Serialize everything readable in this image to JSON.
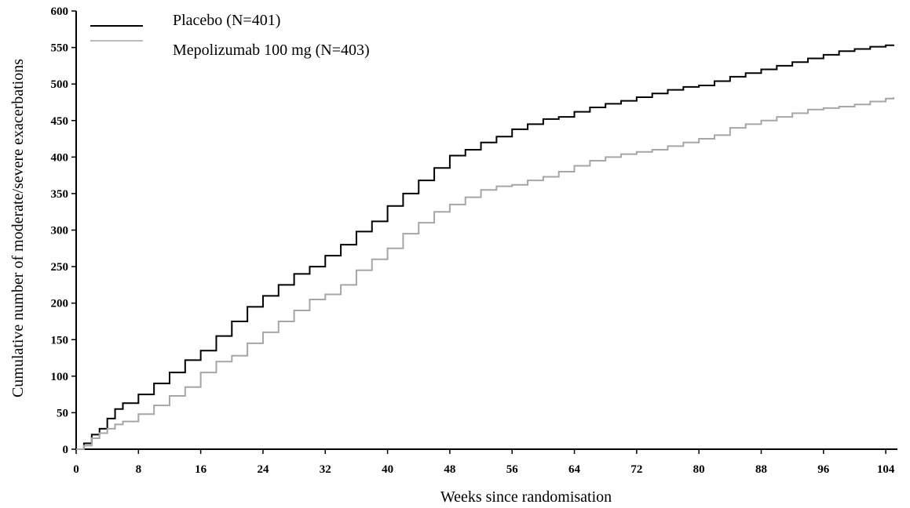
{
  "chart_data": {
    "type": "line",
    "title": "",
    "xlabel": "Weeks since randomisation",
    "ylabel": "Cumulative number of moderate/severe exacerbations",
    "xlim": [
      0,
      105.5
    ],
    "ylim": [
      0,
      600
    ],
    "xticks": [
      0,
      8,
      16,
      24,
      32,
      40,
      48,
      56,
      64,
      72,
      80,
      88,
      96,
      104
    ],
    "yticks": [
      0,
      50,
      100,
      150,
      200,
      250,
      300,
      350,
      400,
      450,
      500,
      550,
      600
    ],
    "grid": false,
    "legend_position": "top-left",
    "series": [
      {
        "name": "Placebo (N=401)",
        "color": "#000000",
        "x": [
          0,
          1,
          2,
          3,
          4,
          5,
          6,
          8,
          10,
          12,
          14,
          16,
          18,
          20,
          22,
          24,
          26,
          28,
          30,
          32,
          34,
          36,
          38,
          40,
          42,
          44,
          46,
          48,
          50,
          52,
          54,
          56,
          58,
          60,
          62,
          64,
          66,
          68,
          70,
          72,
          74,
          76,
          78,
          80,
          82,
          84,
          86,
          88,
          90,
          92,
          94,
          96,
          98,
          100,
          102,
          104,
          105
        ],
        "y": [
          0,
          8,
          20,
          28,
          42,
          55,
          63,
          75,
          90,
          105,
          122,
          135,
          155,
          175,
          195,
          210,
          225,
          240,
          250,
          265,
          280,
          298,
          312,
          333,
          350,
          368,
          385,
          402,
          410,
          420,
          428,
          438,
          445,
          452,
          455,
          462,
          468,
          473,
          477,
          482,
          487,
          492,
          496,
          498,
          504,
          510,
          515,
          520,
          525,
          530,
          535,
          540,
          545,
          548,
          551,
          553,
          554
        ]
      },
      {
        "name": "Mepolizumab 100 mg (N=403)",
        "color": "#a6a6a6",
        "x": [
          0,
          1,
          2,
          3,
          4,
          5,
          6,
          8,
          10,
          12,
          14,
          16,
          18,
          20,
          22,
          24,
          26,
          28,
          30,
          32,
          34,
          36,
          38,
          40,
          42,
          44,
          46,
          48,
          50,
          52,
          54,
          56,
          58,
          60,
          62,
          64,
          66,
          68,
          70,
          72,
          74,
          76,
          78,
          80,
          82,
          84,
          86,
          88,
          90,
          92,
          94,
          96,
          98,
          100,
          102,
          104,
          105
        ],
        "y": [
          0,
          5,
          15,
          22,
          28,
          34,
          38,
          48,
          60,
          73,
          85,
          105,
          120,
          128,
          145,
          160,
          175,
          190,
          205,
          212,
          225,
          245,
          260,
          275,
          295,
          310,
          325,
          335,
          345,
          355,
          360,
          362,
          368,
          373,
          380,
          388,
          395,
          400,
          404,
          407,
          410,
          415,
          420,
          425,
          430,
          440,
          445,
          450,
          455,
          460,
          465,
          467,
          469,
          472,
          476,
          480,
          482
        ]
      }
    ]
  }
}
